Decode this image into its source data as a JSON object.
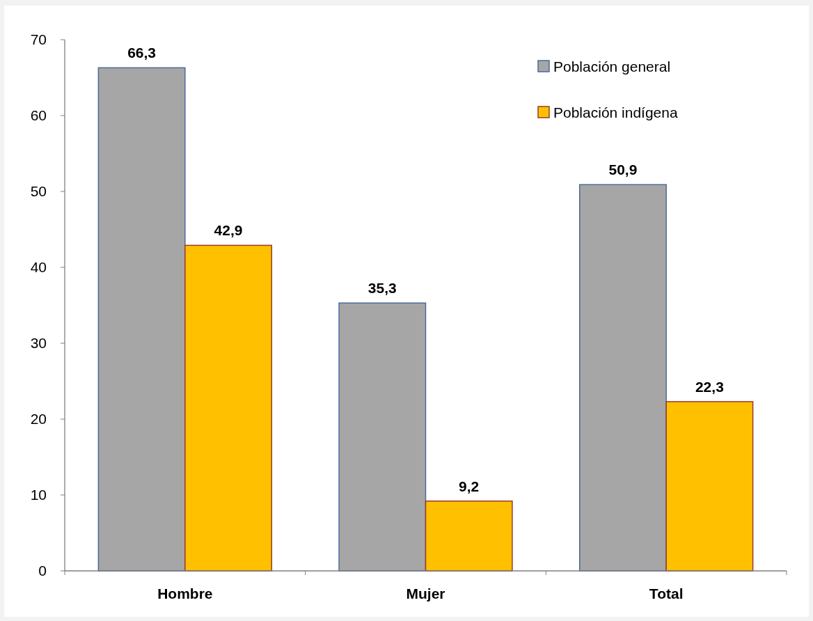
{
  "chart_data": {
    "type": "bar",
    "categories": [
      "Hombre",
      "Mujer",
      "Total"
    ],
    "series": [
      {
        "name": "Población general",
        "color": "#a6a6a6",
        "values": [
          66.3,
          35.3,
          50.9
        ],
        "value_labels": [
          "66,3",
          "35,3",
          "50,9"
        ]
      },
      {
        "name": "Población indígena",
        "color": "#ffc000",
        "values": [
          42.9,
          9.2,
          22.3
        ],
        "value_labels": [
          "42,9",
          "9,2",
          "22,3"
        ]
      }
    ],
    "ylim": [
      0,
      70
    ],
    "yticks": [
      0,
      10,
      20,
      30,
      40,
      50,
      60,
      70
    ],
    "grid": false,
    "legend": "top right"
  }
}
